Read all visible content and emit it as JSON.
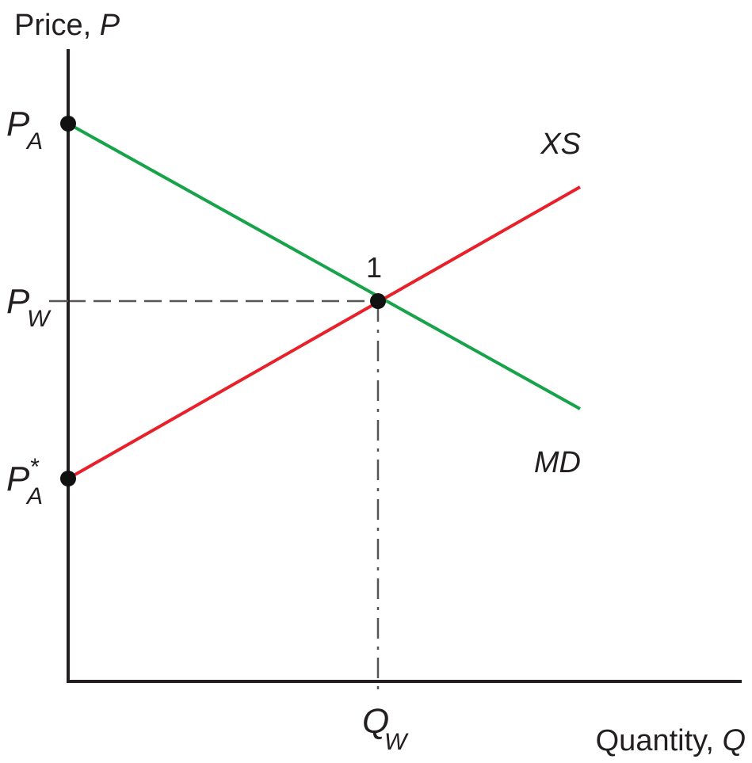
{
  "chart_data": {
    "type": "line",
    "ylabel": {
      "text": "Price, ",
      "var": "P"
    },
    "xlabel": {
      "text": "Quantity, ",
      "var": "Q"
    },
    "xlim": [
      0,
      100
    ],
    "ylim": [
      0,
      100
    ],
    "grid": false,
    "legend": "none",
    "colors": {
      "axis": "#231f20",
      "xs": "#e8202a",
      "md": "#16a34a",
      "dash": "#555555",
      "dot": "#111111",
      "text": "#231f20"
    },
    "series": [
      {
        "name": "XS",
        "key": "xs",
        "x": [
          0,
          76
        ],
        "y": [
          32,
          78
        ]
      },
      {
        "name": "MD",
        "key": "md",
        "x": [
          0,
          76
        ],
        "y": [
          88,
          43
        ]
      }
    ],
    "y_ticks": [
      {
        "main": "P",
        "sub": "A",
        "sup": "",
        "value": 88,
        "dot": true,
        "key": "pa"
      },
      {
        "main": "P",
        "sub": "W",
        "sup": "",
        "value": 60,
        "dot": false,
        "key": "pw"
      },
      {
        "main": "P",
        "sub": "A",
        "sup": "*",
        "value": 32,
        "dot": true,
        "key": "pa-star"
      }
    ],
    "x_ticks": [
      {
        "main": "Q",
        "sub": "W",
        "value": 46,
        "key": "qw"
      }
    ],
    "equilibrium": {
      "label": "1",
      "x": 46,
      "y": 60
    }
  }
}
